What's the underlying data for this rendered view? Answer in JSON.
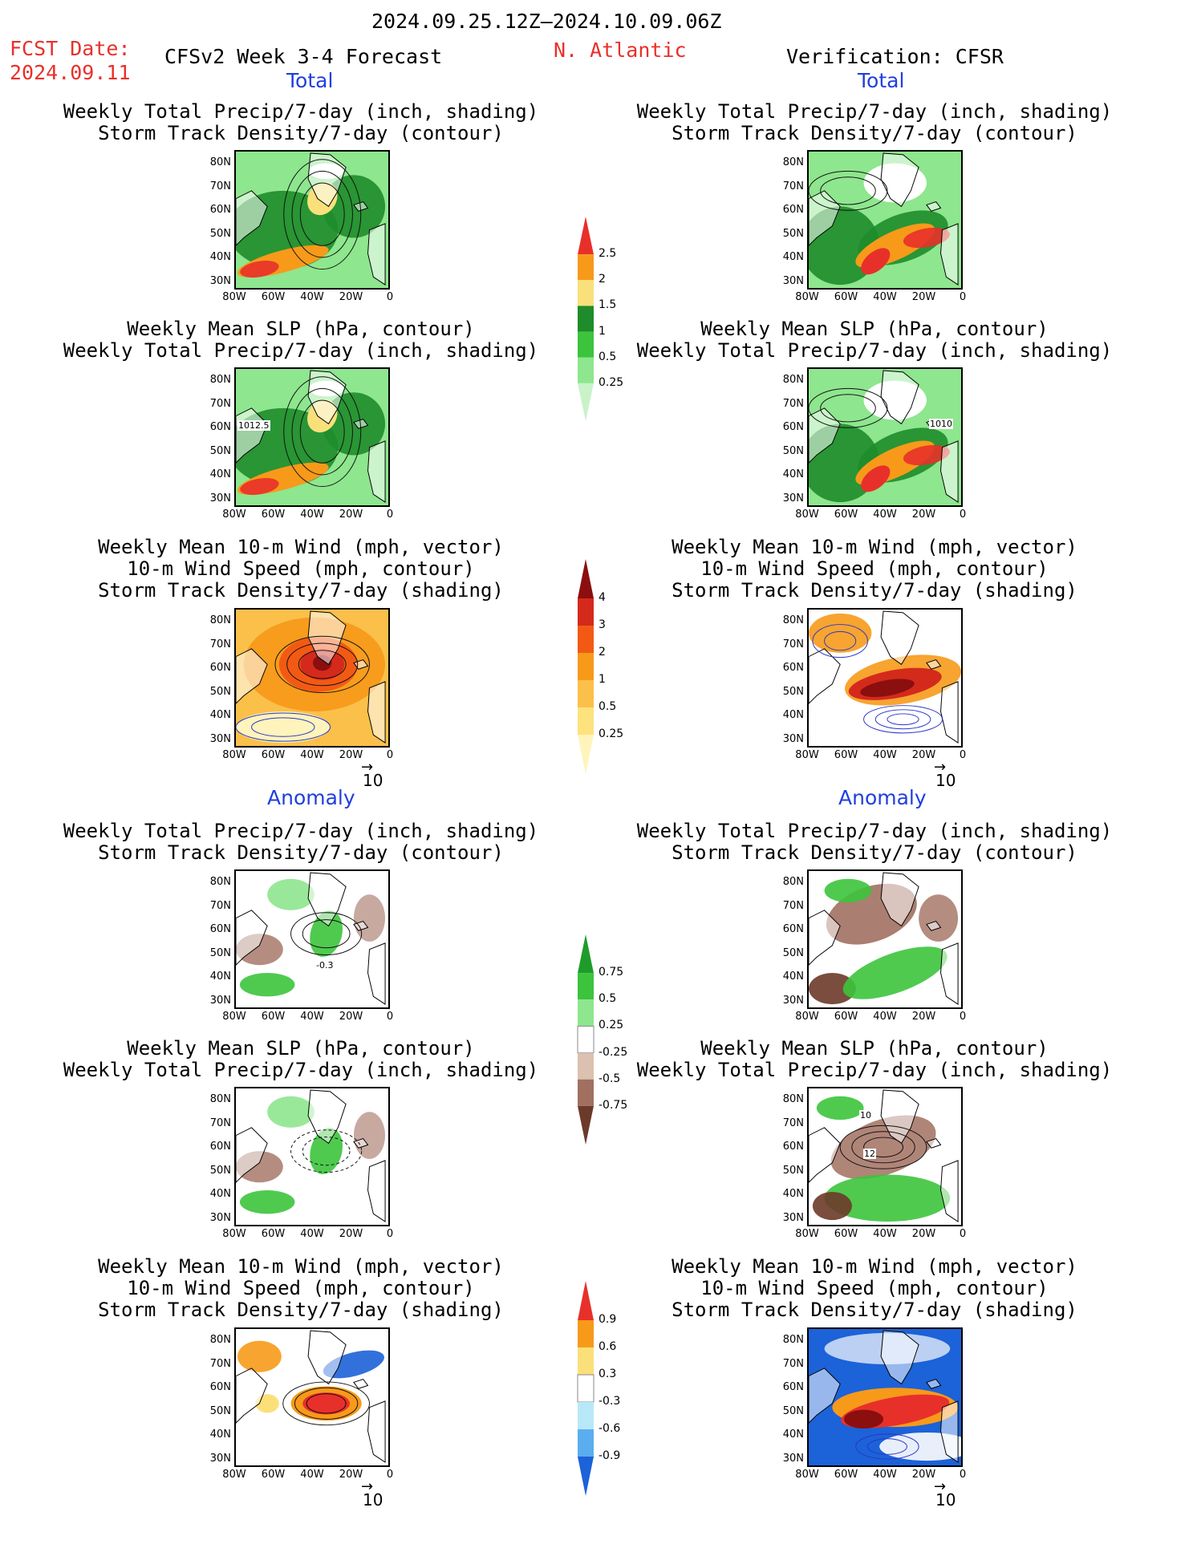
{
  "header": {
    "period": "2024.09.25.12Z–2024.10.09.06Z",
    "fcst_label": "FCST Date:",
    "fcst_date": "2024.09.11",
    "model": "CFSv2 Week 3-4 Forecast",
    "region": "N. Atlantic",
    "verification": "Verification: CFSR"
  },
  "sections": {
    "total": "Total",
    "anomaly": "Anomaly"
  },
  "titles": {
    "precip_storm": [
      "Weekly Total Precip/7-day (inch, shading)",
      "Storm Track Density/7-day (contour)"
    ],
    "slp_precip": [
      "Weekly Mean SLP (hPa, contour)",
      "Weekly Total Precip/7-day (inch, shading)"
    ],
    "wind": [
      "Weekly Mean 10-m Wind (mph, vector)",
      "10-m Wind Speed (mph, contour)",
      "Storm Track Density/7-day (shading)"
    ]
  },
  "axes": {
    "lat": [
      "80N",
      "70N",
      "60N",
      "50N",
      "40N",
      "30N"
    ],
    "lon": [
      "80W",
      "60W",
      "40W",
      "20W",
      "0"
    ]
  },
  "vector_ref": "10",
  "contour_labels": {
    "slp_fcst": "1012.5",
    "slp_obs": "1010",
    "anom_storm_fcst": "-0.3",
    "anom_slp_obs_a": "10",
    "anom_slp_obs_b": "12"
  },
  "colorbars": {
    "precip_total": {
      "labels": [
        "2.5",
        "2",
        "1.5",
        "1",
        "0.5",
        "0.25"
      ],
      "colors": [
        "#e8302a",
        "#f79a1a",
        "#f9e07a",
        "#1e8c2a",
        "#3cc43c",
        "#8ee68e",
        "#c9f2c9"
      ]
    },
    "storm_total": {
      "labels": [
        "4",
        "3",
        "2",
        "1",
        "0.5",
        "0.25"
      ],
      "colors": [
        "#8b0f0f",
        "#d42a1c",
        "#f25a14",
        "#f79a1a",
        "#fbc04a",
        "#fde27d",
        "#fff4bb"
      ]
    },
    "precip_anom": {
      "labels": [
        "0.75",
        "0.5",
        "0.25",
        "-0.25",
        "-0.5",
        "-0.75"
      ],
      "colors": [
        "#1e9c2a",
        "#3cc43c",
        "#8ee68e",
        "#ffffff",
        "#dcc0b0",
        "#a17060",
        "#6b3a2a"
      ]
    },
    "storm_anom": {
      "labels": [
        "0.9",
        "0.6",
        "0.3",
        "-0.3",
        "-0.6",
        "-0.9"
      ],
      "colors": [
        "#e8302a",
        "#f79a1a",
        "#fbe07a",
        "#ffffff",
        "#b8e8f8",
        "#5aaef0",
        "#1c62d8"
      ]
    }
  }
}
